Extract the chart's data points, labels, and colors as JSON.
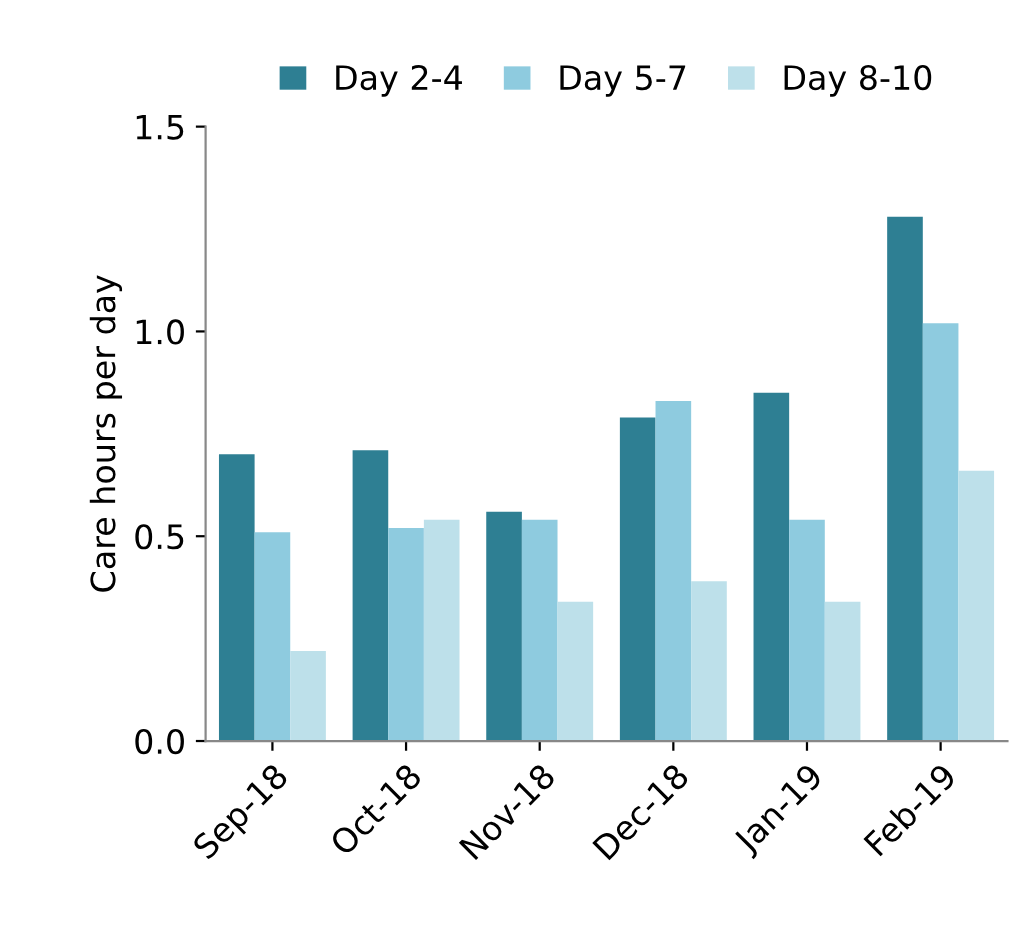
{
  "chart_data": {
    "type": "bar",
    "ylabel": "Care hours per day",
    "categories": [
      "Sep-18",
      "Oct-18",
      "Nov-18",
      "Dec-18",
      "Jan-19",
      "Feb-19"
    ],
    "series": [
      {
        "name": "Day 2-4",
        "color": "#2e7f93",
        "values": [
          0.7,
          0.71,
          0.56,
          0.79,
          0.85,
          1.28
        ]
      },
      {
        "name": "Day 5-7",
        "color": "#8ecbdf",
        "values": [
          0.51,
          0.52,
          0.54,
          0.83,
          0.54,
          1.02
        ]
      },
      {
        "name": "Day 8-10",
        "color": "#bde0ea",
        "values": [
          0.22,
          0.54,
          0.34,
          0.39,
          0.34,
          0.66
        ]
      }
    ],
    "ylim": [
      0,
      1.5
    ],
    "yticks": [
      {
        "value": 0,
        "label": "0.0"
      },
      {
        "value": 0.5,
        "label": "0.5"
      },
      {
        "value": 1,
        "label": "1.0"
      },
      {
        "value": 1.5,
        "label": "1.5"
      }
    ],
    "grid": false,
    "legend": "top"
  }
}
